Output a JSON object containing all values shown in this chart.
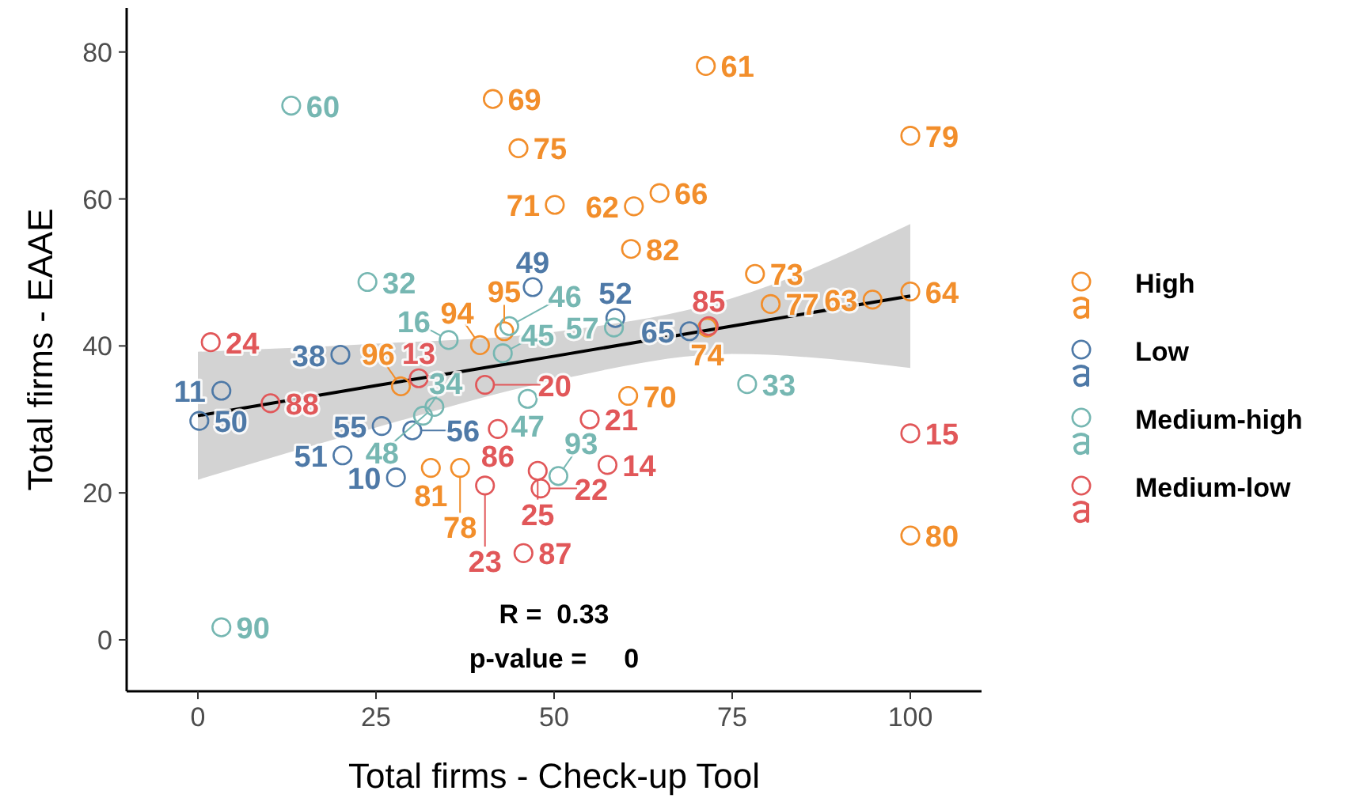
{
  "chart_data": {
    "type": "scatter",
    "xlabel": "Total firms - Check-up Tool",
    "ylabel": "Total firms - EAAE",
    "xlim": [
      -10,
      110
    ],
    "ylim": [
      -7,
      86
    ],
    "xticks": [
      0,
      25,
      50,
      75,
      100
    ],
    "yticks": [
      0,
      20,
      40,
      60,
      80
    ],
    "grid": false,
    "legend": "right",
    "marker": "circle",
    "annotations": [
      "R =  0.33",
      "p-value =     0",
      {
        "text": "61",
        "x": 71.3,
        "y": 78.1
      },
      {
        "text": "69",
        "x": 41.4,
        "y": 73.6
      },
      {
        "text": "75",
        "x": 45.0,
        "y": 66.9
      },
      {
        "text": "71",
        "x": 50.1,
        "y": 59.2
      },
      {
        "text": "62",
        "x": 61.2,
        "y": 59.0
      },
      {
        "text": "66",
        "x": 64.8,
        "y": 60.8
      },
      {
        "text": "82",
        "x": 60.8,
        "y": 53.2
      },
      {
        "text": "79",
        "x": 100,
        "y": 68.6
      },
      {
        "text": "73",
        "x": 78.2,
        "y": 49.8
      },
      {
        "text": "77",
        "x": 80.4,
        "y": 45.7
      },
      {
        "text": "63",
        "x": 94.7,
        "y": 46.3
      },
      {
        "text": "64",
        "x": 100,
        "y": 47.4
      },
      {
        "text": "74",
        "x": 71.5,
        "y": 42.5
      },
      {
        "text": "70",
        "x": 60.4,
        "y": 33.2
      },
      {
        "text": "80",
        "x": 100,
        "y": 14.2
      },
      {
        "text": "81",
        "x": 32.7,
        "y": 23.4
      },
      {
        "text": "78",
        "x": 36.8,
        "y": 23.4
      },
      {
        "text": "96",
        "x": 28.5,
        "y": 34.5
      },
      {
        "text": "94",
        "x": 39.6,
        "y": 40.1
      },
      {
        "text": "95",
        "x": 43,
        "y": 42
      },
      {
        "text": "49",
        "x": 47.0,
        "y": 48.0
      },
      {
        "text": "52",
        "x": 58.6,
        "y": 43.8
      },
      {
        "text": "65",
        "x": 69.0,
        "y": 42.0
      },
      {
        "text": "38",
        "x": 20.0,
        "y": 38.8
      },
      {
        "text": "11",
        "x": 3.3,
        "y": 33.9
      },
      {
        "text": "50",
        "x": 0.2,
        "y": 29.8
      },
      {
        "text": "51",
        "x": 20.3,
        "y": 25.1
      },
      {
        "text": "55",
        "x": 25.8,
        "y": 29.1
      },
      {
        "text": "56",
        "x": 30.1,
        "y": 28.5
      },
      {
        "text": "10",
        "x": 27.8,
        "y": 22.1
      },
      {
        "text": "60",
        "x": 13.1,
        "y": 72.7
      },
      {
        "text": "32",
        "x": 23.8,
        "y": 48.7
      },
      {
        "text": "16",
        "x": 35.2,
        "y": 40.8
      },
      {
        "text": "46",
        "x": 43.7,
        "y": 42.7
      },
      {
        "text": "45",
        "x": 42.8,
        "y": 39.0
      },
      {
        "text": "47",
        "x": 46.3,
        "y": 32.8
      },
      {
        "text": "57",
        "x": 58.4,
        "y": 42.5
      },
      {
        "text": "34",
        "x": 31.6,
        "y": 30.5
      },
      {
        "text": "48",
        "x": 33.2,
        "y": 31.7
      },
      {
        "text": "93",
        "x": 50.6,
        "y": 22.3
      },
      {
        "text": "33",
        "x": 77.1,
        "y": 34.8
      },
      {
        "text": "90",
        "x": 3.3,
        "y": 1.7
      },
      {
        "text": "24",
        "x": 1.8,
        "y": 40.5
      },
      {
        "text": "88",
        "x": 10.2,
        "y": 32.2
      },
      {
        "text": "13",
        "x": 31,
        "y": 35.6
      },
      {
        "text": "20",
        "x": 40.3,
        "y": 34.7
      },
      {
        "text": "86",
        "x": 42.1,
        "y": 28.7
      },
      {
        "text": "23",
        "x": 40.3,
        "y": 21.0
      },
      {
        "text": "25",
        "x": 47.7,
        "y": 23.0
      },
      {
        "text": "22",
        "x": 48.1,
        "y": 20.6
      },
      {
        "text": "87",
        "x": 45.7,
        "y": 11.8
      },
      {
        "text": "21",
        "x": 55.0,
        "y": 30.0
      },
      {
        "text": "14",
        "x": 57.5,
        "y": 23.8
      },
      {
        "text": "85",
        "x": 71.7,
        "y": 42.7
      },
      {
        "text": "15",
        "x": 100,
        "y": 28.1
      }
    ],
    "series": [
      {
        "name": "High",
        "color": "#f28e2b",
        "x": [
          71.3,
          41.4,
          45.0,
          50.1,
          61.2,
          64.8,
          60.8,
          100,
          78.2,
          80.4,
          94.7,
          100,
          71.5,
          60.4,
          100,
          32.7,
          36.8,
          28.5,
          39.6,
          43
        ],
        "values": [
          78.1,
          73.6,
          66.9,
          59.2,
          59.0,
          60.8,
          53.2,
          68.6,
          49.8,
          45.7,
          46.3,
          47.4,
          42.5,
          33.2,
          14.2,
          23.4,
          23.4,
          34.5,
          40.1,
          42
        ]
      },
      {
        "name": "Low",
        "color": "#4e79a7",
        "x": [
          47.0,
          58.6,
          69.0,
          20.0,
          3.3,
          0.2,
          20.3,
          25.8,
          30.1,
          27.8
        ],
        "values": [
          48.0,
          43.8,
          42.0,
          38.8,
          33.9,
          29.8,
          25.1,
          29.1,
          28.5,
          22.1
        ]
      },
      {
        "name": "Medium-high",
        "color": "#76b7b2",
        "x": [
          13.1,
          23.8,
          35.2,
          43.7,
          42.8,
          46.3,
          58.4,
          31.6,
          33.2,
          50.6,
          77.1,
          3.3
        ],
        "values": [
          72.7,
          48.7,
          40.8,
          42.7,
          39.0,
          32.8,
          42.5,
          30.5,
          31.7,
          22.3,
          34.8,
          1.7
        ]
      },
      {
        "name": "Medium-low",
        "color": "#e15759",
        "x": [
          1.8,
          10.2,
          31,
          40.3,
          42.1,
          40.3,
          47.7,
          48.1,
          45.7,
          55.0,
          57.5,
          71.7,
          100
        ],
        "values": [
          40.5,
          32.2,
          35.6,
          34.7,
          28.7,
          21.0,
          23.0,
          20.6,
          11.8,
          30.0,
          23.8,
          42.7,
          28.1
        ]
      },
      {
        "type": "line",
        "color": "#000000",
        "marker": "none",
        "x": [
          0,
          25,
          50,
          75,
          100
        ],
        "values": [
          30.5,
          34.6,
          38.6,
          42.7,
          46.8
        ],
        "lower": [
          21.8,
          28.9,
          35.3,
          38.9,
          37.0
        ],
        "upper": [
          39.2,
          40.3,
          41.9,
          46.5,
          56.6
        ]
      }
    ]
  }
}
